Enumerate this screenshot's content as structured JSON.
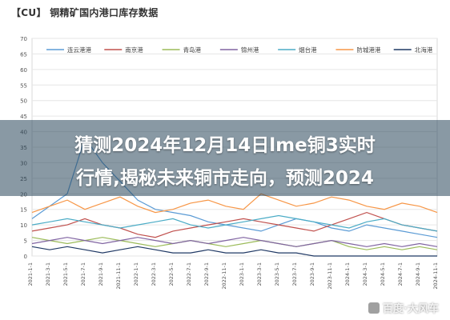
{
  "header": {
    "title": "【CU】 铜精矿国内港口库存数据"
  },
  "banner": {
    "line1": "猜测2024年12月14日lme铜3实时",
    "line2": "行情,揭秘未来铜市走向，预测2024"
  },
  "watermark": {
    "text": "百度·大风车"
  },
  "chart_data": {
    "type": "line",
    "title": "铜精矿国内港口库存数据",
    "xlabel": "",
    "ylabel": "",
    "ylim": [
      0,
      70
    ],
    "yticks": [
      0,
      5,
      10,
      15,
      20,
      25,
      30,
      35,
      40,
      45,
      50,
      55,
      60,
      65,
      70
    ],
    "x_ticks": [
      "2021-1-1",
      "2021-3-1",
      "2021-5-1",
      "2021-7-1",
      "2021-9-1",
      "2021-11-1",
      "2022-1-1",
      "2022-3-1",
      "2022-5-1",
      "2022-7-1",
      "2022-9-1",
      "2022-11-1",
      "2023-1-1",
      "2023-3-1",
      "2023-5-1",
      "2023-7-1",
      "2023-9-1",
      "2023-11-1",
      "2024-1-1",
      "2024-3-1",
      "2024-5-1",
      "2024-7-1",
      "2024-9-1",
      "2024-11-1"
    ],
    "grid": true,
    "legend_position": "top",
    "series": [
      {
        "name": "连云港港",
        "color": "#5B9BD5",
        "values": [
          12,
          16,
          20,
          38,
          30,
          24,
          18,
          15,
          14,
          13,
          11,
          10,
          9,
          8,
          10,
          12,
          11,
          9,
          8,
          10,
          9,
          8,
          7,
          6
        ]
      },
      {
        "name": "南京港",
        "color": "#C0504D",
        "values": [
          8,
          9,
          10,
          12,
          10,
          9,
          7,
          6,
          8,
          9,
          10,
          11,
          12,
          11,
          10,
          9,
          8,
          10,
          12,
          14,
          12,
          10,
          9,
          8
        ]
      },
      {
        "name": "青岛港",
        "color": "#9BBB59",
        "values": [
          6,
          5,
          4,
          5,
          6,
          5,
          4,
          3,
          4,
          5,
          4,
          3,
          4,
          5,
          4,
          3,
          4,
          5,
          3,
          2,
          3,
          2,
          3,
          2
        ]
      },
      {
        "name": "锦州港",
        "color": "#8064A2",
        "values": [
          4,
          5,
          6,
          5,
          4,
          5,
          6,
          5,
          4,
          5,
          4,
          5,
          6,
          5,
          4,
          3,
          4,
          5,
          4,
          3,
          4,
          3,
          4,
          3
        ]
      },
      {
        "name": "烟台港",
        "color": "#4BACC6",
        "values": [
          10,
          11,
          12,
          11,
          10,
          9,
          10,
          11,
          12,
          10,
          9,
          10,
          11,
          12,
          13,
          12,
          11,
          10,
          9,
          11,
          12,
          10,
          9,
          8
        ]
      },
      {
        "name": "防城港港",
        "color": "#F79646",
        "values": [
          14,
          16,
          18,
          15,
          17,
          19,
          16,
          14,
          15,
          17,
          18,
          16,
          15,
          20,
          18,
          16,
          17,
          19,
          18,
          16,
          15,
          17,
          16,
          14
        ]
      },
      {
        "name": "北海港",
        "color": "#1F3864",
        "values": [
          3,
          2,
          3,
          2,
          1,
          2,
          3,
          2,
          1,
          1,
          2,
          1,
          1,
          2,
          1,
          1,
          0,
          0,
          0,
          0,
          0,
          0,
          0,
          0
        ]
      }
    ]
  }
}
